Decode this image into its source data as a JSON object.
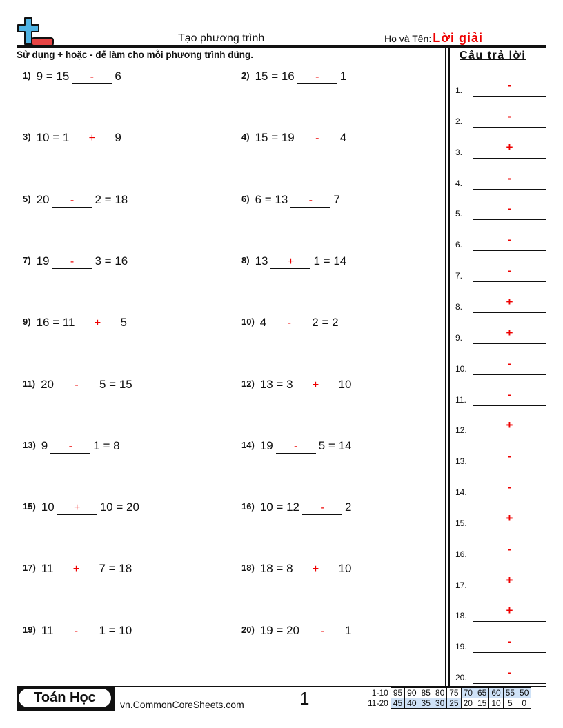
{
  "header": {
    "title": "Tạo phương trình",
    "name_label": "Họ và Tên:",
    "name_value": "Lời giải",
    "instructions": "Sử dụng + hoặc - để làm cho mỗi phương trình đúng."
  },
  "answer_key": {
    "heading": "Câu trả lời",
    "items": [
      {
        "n": "1.",
        "v": "-"
      },
      {
        "n": "2.",
        "v": "-"
      },
      {
        "n": "3.",
        "v": "+"
      },
      {
        "n": "4.",
        "v": "-"
      },
      {
        "n": "5.",
        "v": "-"
      },
      {
        "n": "6.",
        "v": "-"
      },
      {
        "n": "7.",
        "v": "-"
      },
      {
        "n": "8.",
        "v": "+"
      },
      {
        "n": "9.",
        "v": "+"
      },
      {
        "n": "10.",
        "v": "-"
      },
      {
        "n": "11.",
        "v": "-"
      },
      {
        "n": "12.",
        "v": "+"
      },
      {
        "n": "13.",
        "v": "-"
      },
      {
        "n": "14.",
        "v": "-"
      },
      {
        "n": "15.",
        "v": "+"
      },
      {
        "n": "16.",
        "v": "-"
      },
      {
        "n": "17.",
        "v": "+"
      },
      {
        "n": "18.",
        "v": "+"
      },
      {
        "n": "19.",
        "v": "-"
      },
      {
        "n": "20.",
        "v": "-"
      }
    ]
  },
  "problems": [
    {
      "n": "1)",
      "pre": "9 = 15",
      "ans": "-",
      "post": "6"
    },
    {
      "n": "2)",
      "pre": "15 = 16",
      "ans": "-",
      "post": "1"
    },
    {
      "n": "3)",
      "pre": "10 = 1",
      "ans": "+",
      "post": "9"
    },
    {
      "n": "4)",
      "pre": "15 = 19",
      "ans": "-",
      "post": "4"
    },
    {
      "n": "5)",
      "pre": "20",
      "ans": "-",
      "post": "2 = 18"
    },
    {
      "n": "6)",
      "pre": "6 = 13",
      "ans": "-",
      "post": "7"
    },
    {
      "n": "7)",
      "pre": "19",
      "ans": "-",
      "post": "3 = 16"
    },
    {
      "n": "8)",
      "pre": "13",
      "ans": "+",
      "post": "1 = 14"
    },
    {
      "n": "9)",
      "pre": "16 = 11",
      "ans": "+",
      "post": "5"
    },
    {
      "n": "10)",
      "pre": "4",
      "ans": "-",
      "post": "2 = 2"
    },
    {
      "n": "11)",
      "pre": "20",
      "ans": "-",
      "post": "5 = 15"
    },
    {
      "n": "12)",
      "pre": "13 = 3",
      "ans": "+",
      "post": "10"
    },
    {
      "n": "13)",
      "pre": "9",
      "ans": "-",
      "post": "1 = 8"
    },
    {
      "n": "14)",
      "pre": "19",
      "ans": "-",
      "post": "5 = 14"
    },
    {
      "n": "15)",
      "pre": "10",
      "ans": "+",
      "post": "10 = 20"
    },
    {
      "n": "16)",
      "pre": "10 = 12",
      "ans": "-",
      "post": "2"
    },
    {
      "n": "17)",
      "pre": "11",
      "ans": "+",
      "post": "7 = 18"
    },
    {
      "n": "18)",
      "pre": "18 = 8",
      "ans": "+",
      "post": "10"
    },
    {
      "n": "19)",
      "pre": "11",
      "ans": "-",
      "post": "1 = 10"
    },
    {
      "n": "20)",
      "pre": "19 = 20",
      "ans": "-",
      "post": "1"
    }
  ],
  "footer": {
    "brand": "Toán Học",
    "site": "vn.CommonCoreSheets.com",
    "page": "1",
    "score_rows": [
      {
        "label": "1-10",
        "values": [
          "95",
          "90",
          "85",
          "80",
          "75",
          "70",
          "65",
          "60",
          "55",
          "50"
        ]
      },
      {
        "label": "11-20",
        "values": [
          "45",
          "40",
          "35",
          "30",
          "25",
          "20",
          "15",
          "10",
          "5",
          "0"
        ]
      }
    ]
  },
  "colors": {
    "answer_red": "#ee0000",
    "logo_blue": "#4fb3e3",
    "logo_red": "#e84545",
    "score_highlight": "#cfe2f7"
  }
}
